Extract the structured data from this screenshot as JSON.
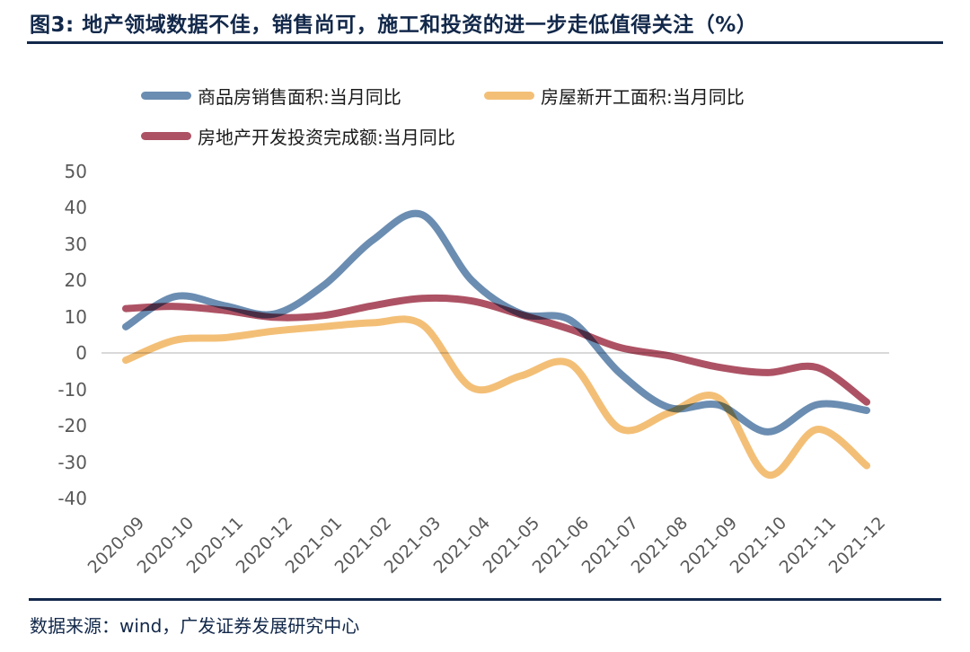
{
  "title": {
    "text": "图3:  地产领域数据不佳，销售尚可，施工和投资的进一步走低值得关注（%）"
  },
  "footer": {
    "text": "数据来源：wind，广发证券发展研究中心"
  },
  "colors": {
    "accent_navy": "#12284a",
    "series_blue": "#6b8db1",
    "series_yellow": "#f3bf77",
    "series_red": "#ad5264",
    "axis_text": "#595959",
    "zero_line": "#d9d9d9"
  },
  "chart_data": {
    "type": "line",
    "categories": [
      "2020-09",
      "2020-10",
      "2020-11",
      "2020-12",
      "2021-01",
      "2021-02",
      "2021-03",
      "2021-04",
      "2021-05",
      "2021-06",
      "2021-07",
      "2021-08",
      "2021-09",
      "2021-10",
      "2021-11",
      "2021-12"
    ],
    "series": [
      {
        "name": "商品房销售面积:当月同比",
        "color": "#6b8db1",
        "values": [
          7.2,
          15.5,
          13.0,
          10.7,
          18.5,
          31.0,
          38.0,
          20.0,
          10.8,
          9.0,
          -5.5,
          -15.0,
          -14.3,
          -21.7,
          -14.2,
          -15.8
        ]
      },
      {
        "name": "房屋新开工面积:当月同比",
        "color": "#f3bf77",
        "values": [
          -2.0,
          3.5,
          4.2,
          6.0,
          7.2,
          8.3,
          7.8,
          -9.5,
          -6.3,
          -3.0,
          -20.8,
          -16.5,
          -12.4,
          -33.5,
          -21.0,
          -31.0
        ]
      },
      {
        "name": "房地产开发投资完成额:当月同比",
        "color": "#ad5264",
        "values": [
          12.2,
          12.8,
          11.7,
          9.8,
          10.3,
          13.0,
          15.0,
          14.3,
          10.5,
          6.5,
          1.5,
          -0.8,
          -3.9,
          -5.4,
          -4.0,
          -13.5
        ]
      }
    ],
    "ylim": [
      -40,
      50
    ],
    "yticks": [
      50,
      40,
      30,
      20,
      10,
      0,
      -10,
      -20,
      -30,
      -40
    ],
    "grid": "zero-line-only",
    "legend_position": "top-left-two-columns",
    "xlabel": "",
    "ylabel": ""
  }
}
